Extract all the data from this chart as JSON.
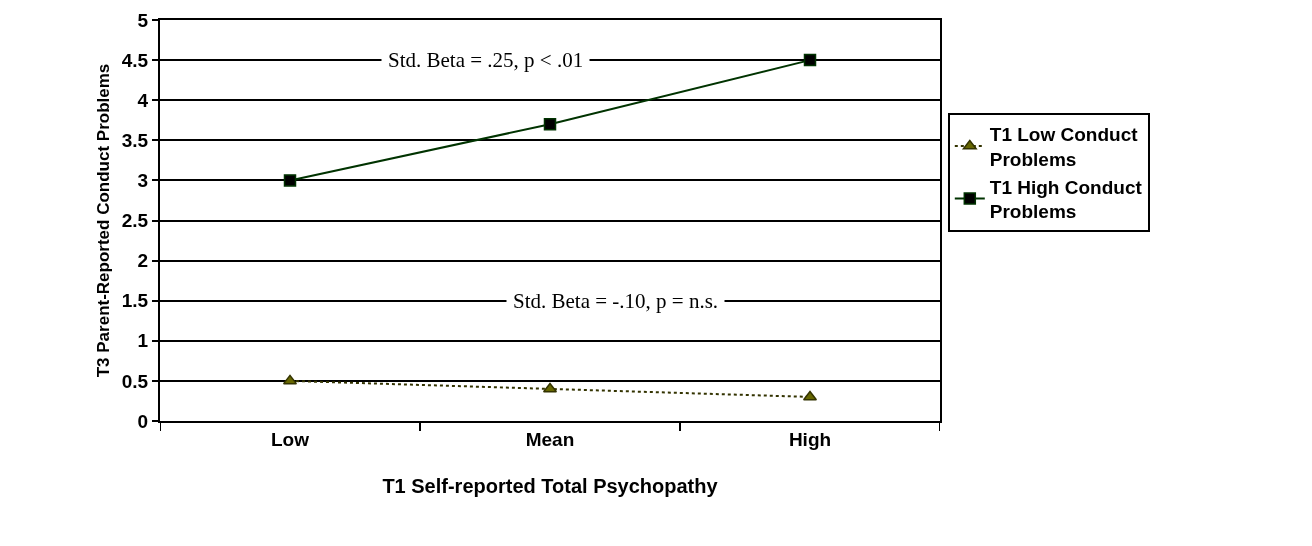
{
  "chart_data": {
    "type": "line",
    "xlabel": "T1 Self-reported Total Psychopathy",
    "ylabel": "T3 Parent-Reported Conduct Problems",
    "categories": [
      "Low",
      "Mean",
      "High"
    ],
    "series": [
      {
        "name": "T1 Low Conduct Problems",
        "color": "#333300",
        "values": [
          0.5,
          0.4,
          0.3
        ],
        "marker": "triangle",
        "line_style": "dotted"
      },
      {
        "name": "T1 High Conduct Problems",
        "color": "#003300",
        "values": [
          3.0,
          3.7,
          4.5
        ],
        "marker": "square",
        "line_style": "solid"
      }
    ],
    "ylim": [
      0,
      5
    ],
    "yticks": [
      0,
      0.5,
      1,
      1.5,
      2,
      2.5,
      3,
      3.5,
      4,
      4.5,
      5
    ],
    "grid": "y",
    "legend": "right",
    "annotations": [
      "Std. Beta = .25, p < .01",
      "Std. Beta = -.10, p = n.s."
    ]
  }
}
